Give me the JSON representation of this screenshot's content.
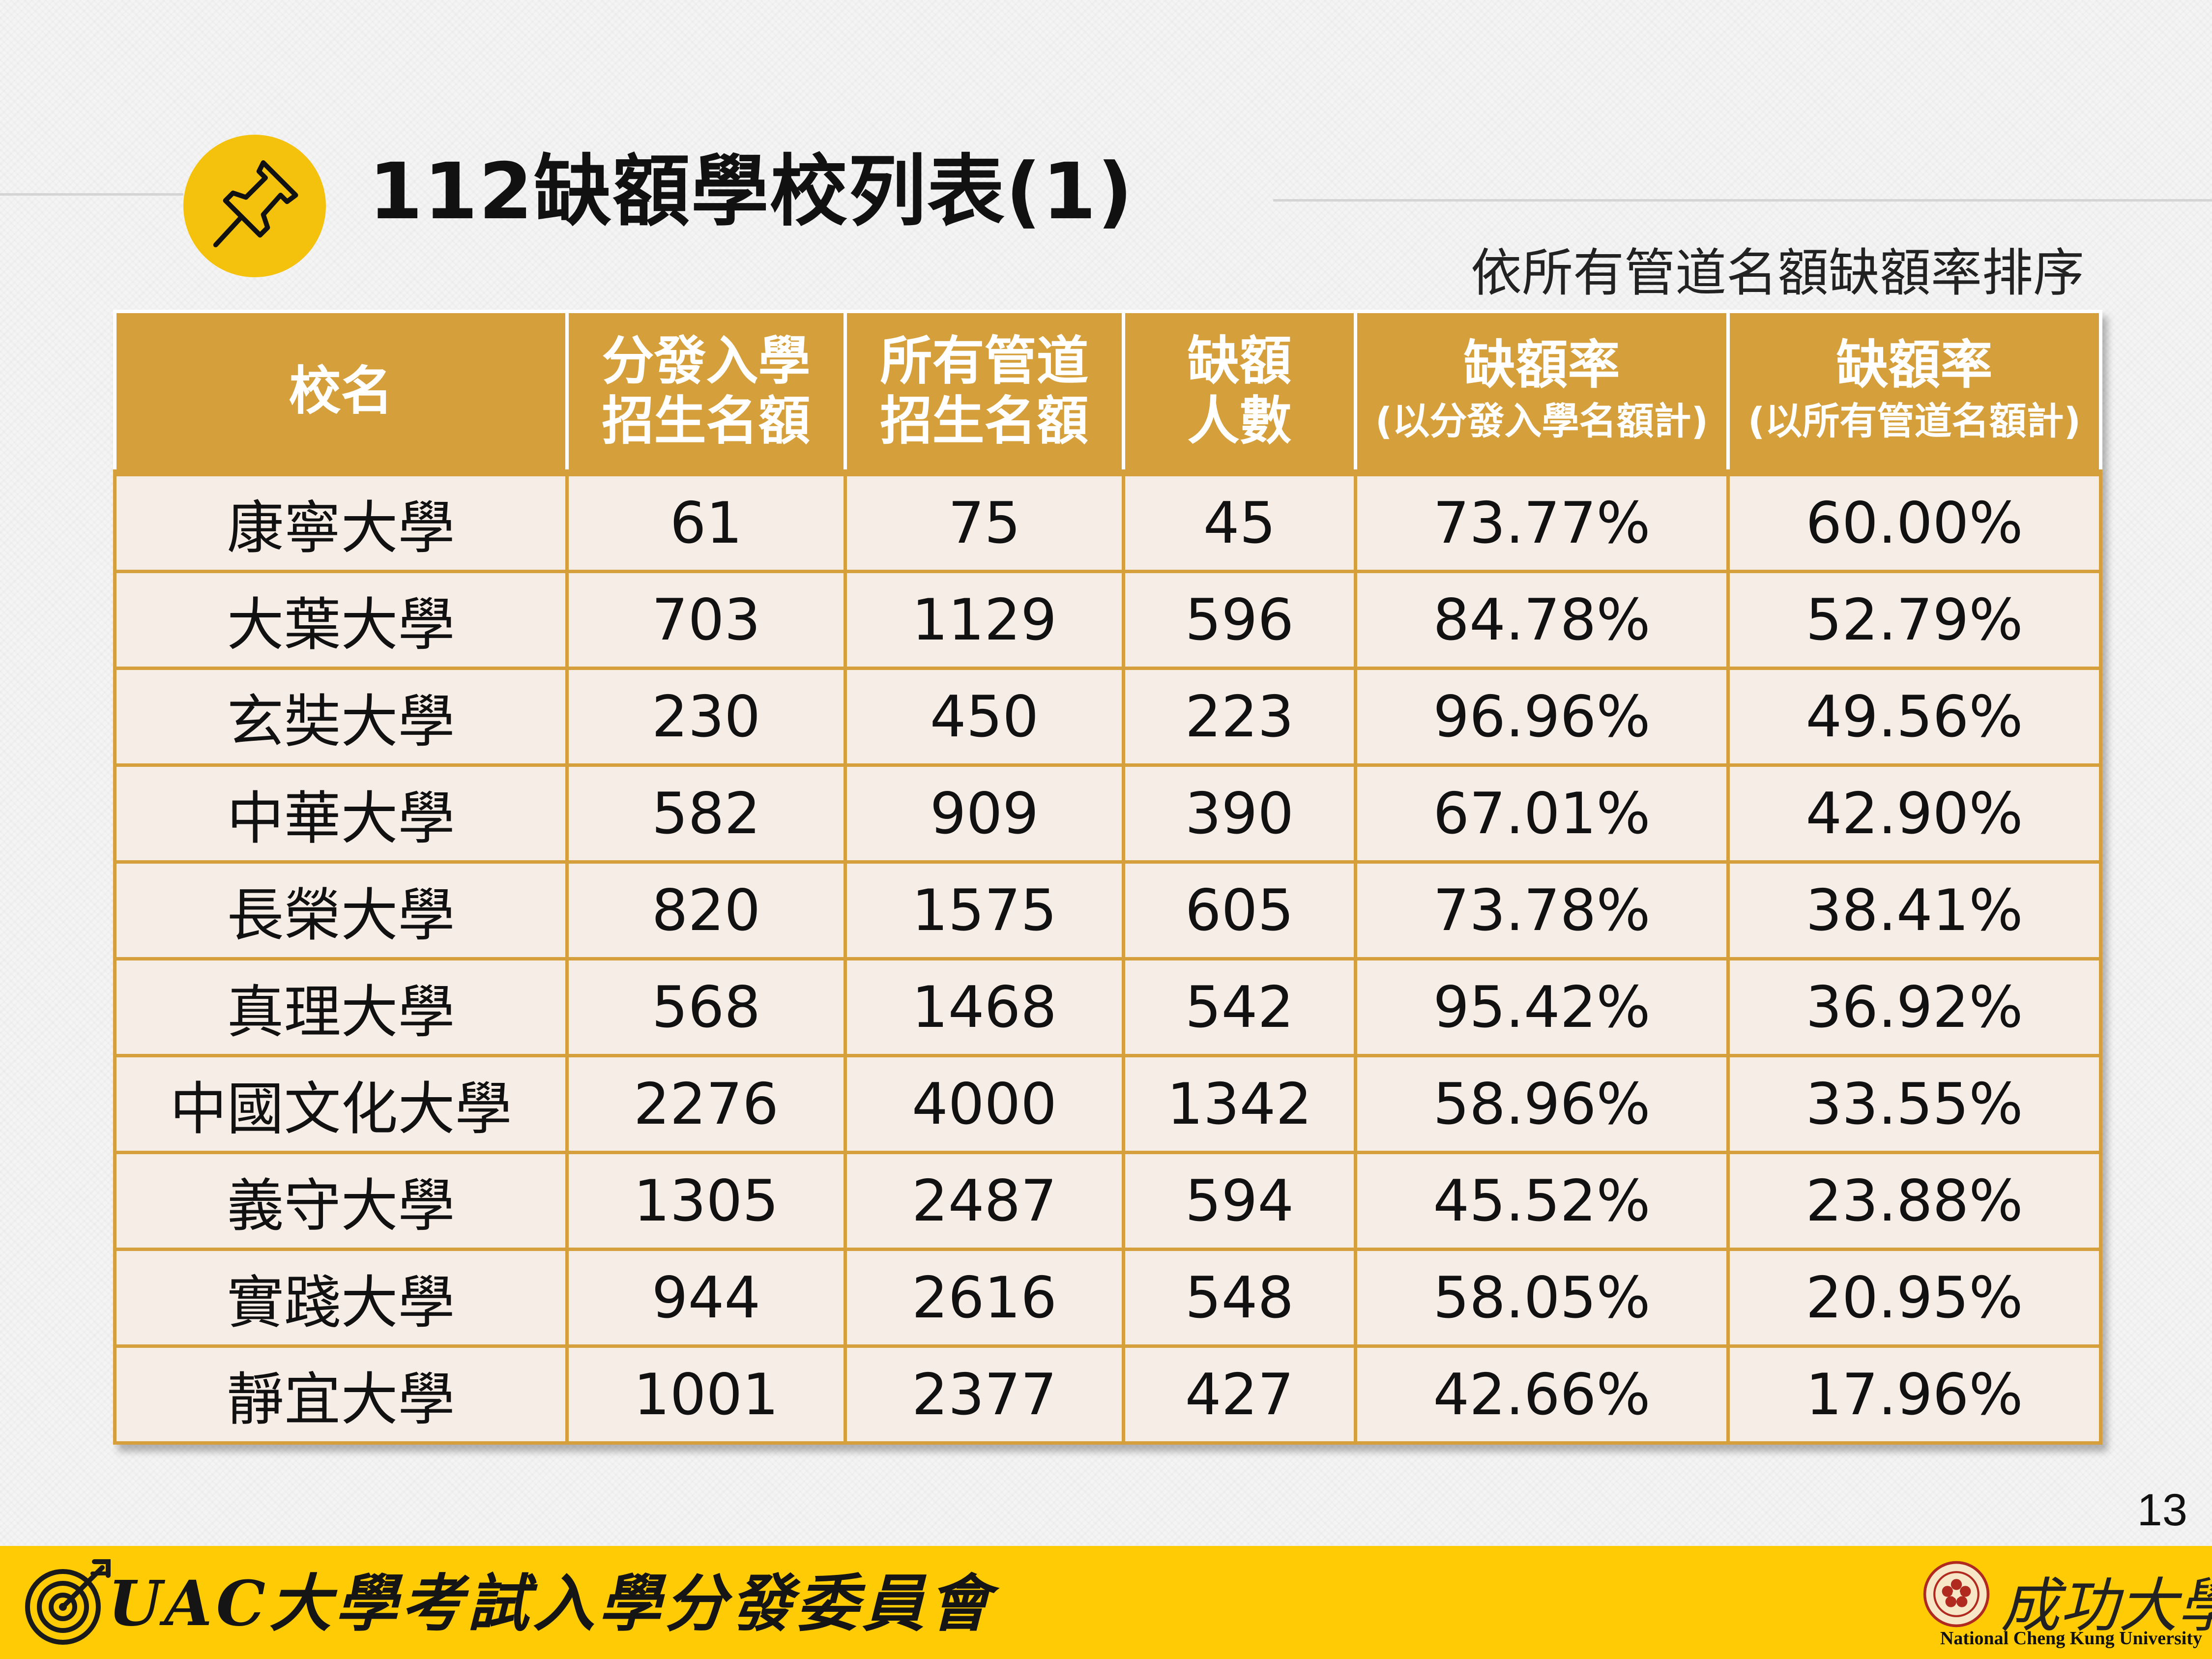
{
  "header": {
    "title": "112缺額學校列表(1)",
    "subtitle": "依所有管道名額缺額率排序"
  },
  "table": {
    "headers": [
      {
        "line1": "校名"
      },
      {
        "line1": "分發入學",
        "line2": "招生名額"
      },
      {
        "line1": "所有管道",
        "line2": "招生名額"
      },
      {
        "line1": "缺額",
        "line2": "人數"
      },
      {
        "line1": "缺額率",
        "sub": "(以分發入學名額計)"
      },
      {
        "line1": "缺額率",
        "sub": "(以所有管道名額計)"
      }
    ],
    "rows": [
      [
        "康寧大學",
        "61",
        "75",
        "45",
        "73.77%",
        "60.00%"
      ],
      [
        "大葉大學",
        "703",
        "1129",
        "596",
        "84.78%",
        "52.79%"
      ],
      [
        "玄奘大學",
        "230",
        "450",
        "223",
        "96.96%",
        "49.56%"
      ],
      [
        "中華大學",
        "582",
        "909",
        "390",
        "67.01%",
        "42.90%"
      ],
      [
        "長榮大學",
        "820",
        "1575",
        "605",
        "73.78%",
        "38.41%"
      ],
      [
        "真理大學",
        "568",
        "1468",
        "542",
        "95.42%",
        "36.92%"
      ],
      [
        "中國文化大學",
        "2276",
        "4000",
        "1342",
        "58.96%",
        "33.55%"
      ],
      [
        "義守大學",
        "1305",
        "2487",
        "594",
        "45.52%",
        "23.88%"
      ],
      [
        "實踐大學",
        "944",
        "2616",
        "548",
        "58.05%",
        "20.95%"
      ],
      [
        "靜宜大學",
        "1001",
        "2377",
        "427",
        "42.66%",
        "17.96%"
      ]
    ]
  },
  "page_number": "13",
  "footer": {
    "org_name": "UAC大學考試入學分發委員會",
    "university_cn": "成功大學",
    "university_en": "National Cheng Kung University"
  },
  "icons": {
    "title_icon": "pushpin-icon",
    "footer_icon": "target-arrow-icon",
    "university_icon": "university-seal-icon"
  },
  "colors": {
    "accent_yellow": "#f4c20d",
    "footer_yellow": "#fecb04",
    "table_header": "#d5a03c",
    "table_cell": "#f6ede7"
  }
}
